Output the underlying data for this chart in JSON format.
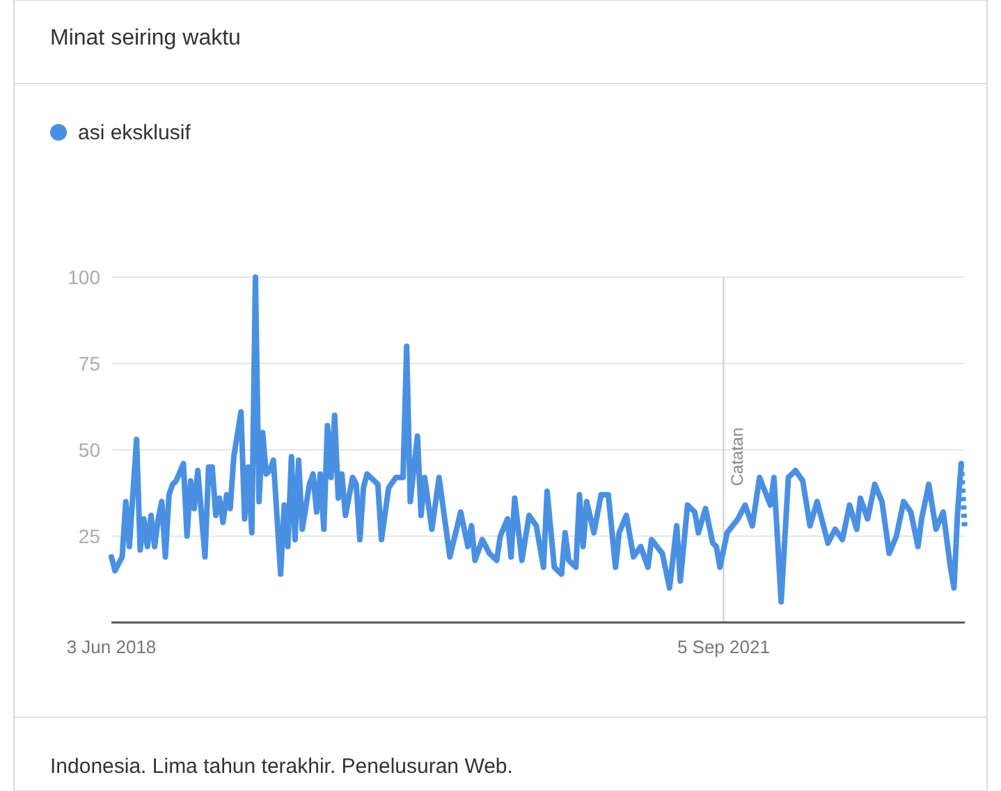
{
  "chart_data": {
    "type": "line",
    "title": "Minat seiring waktu",
    "annotations": [
      "Indonesia. Lima tahun terakhir. Penelusuran Web."
    ],
    "legend": "top left",
    "grid": "y",
    "marker": "none",
    "line_style": "solid",
    "xlim": [
      "2018-06-03",
      "2022-12-18"
    ],
    "xticks": [
      {
        "value": "2018-06-03",
        "label": "3 Jun 2018"
      },
      {
        "value": "2021-09-05",
        "label": "5 Sep 2021"
      }
    ],
    "ylim": [
      0,
      100
    ],
    "yticks": [
      25,
      50,
      75,
      100
    ],
    "ref_lines": [
      {
        "axis": "x",
        "value": "2021-09-05",
        "label": "Catatan",
        "color": "#cccccc"
      }
    ],
    "series": [
      {
        "name": "asi eksklusif",
        "color": "#4a90e2",
        "x": [
          "2018-06-03",
          "2018-06-10",
          "2018-06-24",
          "2018-07-01",
          "2018-07-08",
          "2018-07-22",
          "2018-07-29",
          "2018-08-05",
          "2018-08-12",
          "2018-08-19",
          "2018-08-26",
          "2018-09-02",
          "2018-09-09",
          "2018-09-16",
          "2018-09-23",
          "2018-09-30",
          "2018-10-07",
          "2018-10-21",
          "2018-10-28",
          "2018-11-04",
          "2018-11-11",
          "2018-11-18",
          "2018-12-02",
          "2018-12-09",
          "2018-12-16",
          "2018-12-23",
          "2018-12-30",
          "2019-01-06",
          "2019-01-13",
          "2019-01-20",
          "2019-01-27",
          "2019-02-10",
          "2019-02-17",
          "2019-02-24",
          "2019-03-03",
          "2019-03-10",
          "2019-03-17",
          "2019-03-24",
          "2019-03-31",
          "2019-04-07",
          "2019-04-14",
          "2019-04-28",
          "2019-05-05",
          "2019-05-12",
          "2019-05-19",
          "2019-05-26",
          "2019-06-02",
          "2019-06-09",
          "2019-06-23",
          "2019-06-30",
          "2019-07-07",
          "2019-07-14",
          "2019-07-21",
          "2019-07-28",
          "2019-08-04",
          "2019-08-11",
          "2019-08-18",
          "2019-08-25",
          "2019-09-01",
          "2019-09-15",
          "2019-09-22",
          "2019-09-29",
          "2019-10-06",
          "2019-10-13",
          "2019-11-03",
          "2019-11-10",
          "2019-11-24",
          "2019-12-08",
          "2019-12-22",
          "2019-12-29",
          "2020-01-05",
          "2020-01-19",
          "2020-01-26",
          "2020-02-02",
          "2020-02-16",
          "2020-03-01",
          "2020-03-22",
          "2020-04-12",
          "2020-04-26",
          "2020-05-03",
          "2020-05-10",
          "2020-05-24",
          "2020-06-07",
          "2020-06-21",
          "2020-06-28",
          "2020-07-12",
          "2020-07-19",
          "2020-07-26",
          "2020-08-09",
          "2020-08-23",
          "2020-09-06",
          "2020-09-20",
          "2020-09-27",
          "2020-10-11",
          "2020-10-25",
          "2020-11-01",
          "2020-11-08",
          "2020-11-22",
          "2020-11-29",
          "2020-12-06",
          "2020-12-13",
          "2020-12-27",
          "2021-01-10",
          "2021-01-24",
          "2021-02-07",
          "2021-02-14",
          "2021-02-28",
          "2021-03-14",
          "2021-03-28",
          "2021-04-11",
          "2021-04-18",
          "2021-05-09",
          "2021-05-23",
          "2021-06-06",
          "2021-06-13",
          "2021-06-27",
          "2021-07-11",
          "2021-07-18",
          "2021-08-01",
          "2021-08-15",
          "2021-08-22",
          "2021-08-29",
          "2021-09-12",
          "2021-10-03",
          "2021-10-17",
          "2021-10-31",
          "2021-11-14",
          "2021-12-05",
          "2021-12-12",
          "2021-12-26",
          "2022-01-09",
          "2022-01-23",
          "2022-02-06",
          "2022-02-20",
          "2022-03-06",
          "2022-03-20",
          "2022-03-27",
          "2022-04-10",
          "2022-04-24",
          "2022-05-08",
          "2022-05-22",
          "2022-05-29",
          "2022-06-12",
          "2022-06-26",
          "2022-07-10",
          "2022-07-24",
          "2022-08-07",
          "2022-08-21",
          "2022-09-04",
          "2022-09-18",
          "2022-09-25",
          "2022-10-09",
          "2022-10-23",
          "2022-11-06",
          "2022-11-20",
          "2022-11-27",
          "2022-12-04",
          "2022-12-11"
        ],
        "values": [
          19,
          15,
          19,
          35,
          22,
          53,
          21,
          30,
          22,
          31,
          22,
          30,
          35,
          19,
          37,
          40,
          41,
          46,
          25,
          41,
          33,
          44,
          19,
          45,
          45,
          31,
          36,
          29,
          37,
          33,
          48,
          61,
          30,
          45,
          26,
          100,
          35,
          55,
          43,
          44,
          47,
          14,
          34,
          22,
          48,
          24,
          47,
          27,
          40,
          43,
          32,
          43,
          27,
          57,
          42,
          60,
          36,
          43,
          31,
          42,
          40,
          24,
          39,
          43,
          40,
          24,
          39,
          42,
          42,
          80,
          35,
          54,
          31,
          42,
          27,
          42,
          19,
          32,
          22,
          28,
          18,
          24,
          20,
          18,
          25,
          30,
          19,
          36,
          18,
          31,
          28,
          16,
          38,
          16,
          14,
          26,
          18,
          16,
          37,
          22,
          35,
          26,
          37,
          37,
          16,
          26,
          31,
          19,
          22,
          16,
          24,
          20,
          10,
          28,
          12,
          34,
          32,
          26,
          33,
          23,
          22,
          16,
          26,
          30,
          34,
          28,
          42,
          34,
          42,
          6,
          42,
          44,
          41,
          28,
          35,
          27,
          23,
          27,
          24,
          34,
          27,
          36,
          30,
          40,
          35,
          20,
          25,
          35,
          32,
          22,
          30,
          40,
          27,
          32,
          16,
          10,
          32,
          46
        ]
      },
      {
        "color": "#4a90e2",
        "line_style": "dashed",
        "x": [
          "2022-12-11",
          "2022-12-18"
        ],
        "values": [
          46,
          27
        ]
      }
    ]
  }
}
